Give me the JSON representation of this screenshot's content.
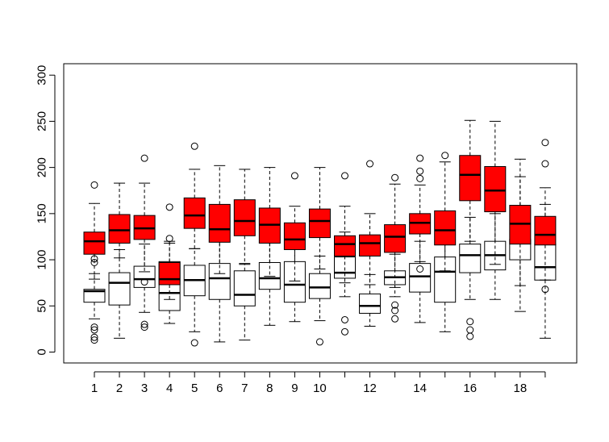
{
  "chart_data": {
    "type": "boxplot",
    "title": "",
    "xlabel": "",
    "ylabel": "",
    "ylim": [
      -12,
      312
    ],
    "yticks": [
      0,
      50,
      100,
      150,
      200,
      250,
      300
    ],
    "ytick_labels": [
      "0",
      "50",
      "100",
      "150",
      "200",
      "250",
      "300"
    ],
    "xtick_labels": [
      "1",
      "2",
      "3",
      "4",
      "5",
      "6",
      "7",
      "8",
      "9",
      "10",
      "12",
      "14",
      "16",
      "18"
    ],
    "xtick_positions": [
      1,
      2,
      3,
      4,
      5,
      6,
      7,
      8,
      9,
      10,
      12,
      14,
      16,
      18
    ],
    "grid": false,
    "legend": "none",
    "series": [
      {
        "fill": "#ffffff",
        "boxes": [
          {
            "x": 1,
            "whisker_low": 36,
            "q1": 54,
            "median": 66,
            "q3": 68,
            "whisker_high": 85,
            "outliers": [
              101,
              97,
              27,
              24,
              16,
              13
            ]
          },
          {
            "x": 2,
            "whisker_low": 15,
            "q1": 51,
            "median": 75,
            "q3": 86,
            "whisker_high": 111,
            "outliers": []
          },
          {
            "x": 3,
            "whisker_low": 43,
            "q1": 70,
            "median": 79,
            "q3": 93,
            "whisker_high": 117,
            "outliers": [
              210,
              76,
              30,
              27
            ]
          },
          {
            "x": 4,
            "whisker_low": 31,
            "q1": 45,
            "median": 64,
            "q3": 98,
            "whisker_high": 120,
            "outliers": [
              123
            ]
          },
          {
            "x": 5,
            "whisker_low": 22,
            "q1": 61,
            "median": 78,
            "q3": 94,
            "whisker_high": 112,
            "outliers": [
              10
            ]
          },
          {
            "x": 6,
            "whisker_low": 11,
            "q1": 57,
            "median": 80,
            "q3": 96,
            "whisker_high": 128,
            "outliers": []
          },
          {
            "x": 7,
            "whisker_low": 13,
            "q1": 50,
            "median": 62,
            "q3": 88,
            "whisker_high": 96,
            "outliers": []
          },
          {
            "x": 8,
            "whisker_low": 29,
            "q1": 68,
            "median": 80,
            "q3": 97,
            "whisker_high": 120,
            "outliers": []
          },
          {
            "x": 9,
            "whisker_low": 33,
            "q1": 54,
            "median": 73,
            "q3": 98,
            "whisker_high": 125,
            "outliers": [
              191
            ]
          },
          {
            "x": 10,
            "whisker_low": 34,
            "q1": 58,
            "median": 70,
            "q3": 85,
            "whisker_high": 104,
            "outliers": [
              11
            ]
          },
          {
            "x": 11,
            "whisker_low": 60,
            "q1": 80,
            "median": 86,
            "q3": 103,
            "whisker_high": 130,
            "outliers": [
              191,
              35,
              22
            ]
          },
          {
            "x": 12,
            "whisker_low": 28,
            "q1": 42,
            "median": 50,
            "q3": 63,
            "whisker_high": 84,
            "outliers": [
              204
            ]
          },
          {
            "x": 13,
            "whisker_low": 60,
            "q1": 73,
            "median": 81,
            "q3": 88,
            "whisker_high": 106,
            "outliers": [
              51,
              45,
              36
            ]
          },
          {
            "x": 14,
            "whisker_low": 32,
            "q1": 65,
            "median": 82,
            "q3": 96,
            "whisker_high": 120,
            "outliers": [
              90
            ]
          },
          {
            "x": 15,
            "whisker_low": 22,
            "q1": 54,
            "median": 87,
            "q3": 103,
            "whisker_high": 146,
            "outliers": []
          },
          {
            "x": 16,
            "whisker_low": 57,
            "q1": 86,
            "median": 105,
            "q3": 117,
            "whisker_high": 146,
            "outliers": [
              33,
              24,
              17
            ]
          },
          {
            "x": 17,
            "whisker_low": 57,
            "q1": 89,
            "median": 105,
            "q3": 120,
            "whisker_high": 150,
            "outliers": []
          },
          {
            "x": 18,
            "whisker_low": 72,
            "q1": 100,
            "median": 118,
            "q3": 122,
            "whisker_high": 190,
            "outliers": []
          },
          {
            "x": 19,
            "whisker_low": 15,
            "q1": 78,
            "median": 92,
            "q3": 117,
            "whisker_high": 160,
            "outliers": [
              68
            ]
          }
        ]
      },
      {
        "fill": "#ff0000",
        "boxes": [
          {
            "x": 1,
            "whisker_low": 79,
            "q1": 106,
            "median": 120,
            "q3": 130,
            "whisker_high": 161,
            "outliers": [
              181
            ]
          },
          {
            "x": 2,
            "whisker_low": 102,
            "q1": 118,
            "median": 132,
            "q3": 149,
            "whisker_high": 183,
            "outliers": []
          },
          {
            "x": 3,
            "whisker_low": 87,
            "q1": 122,
            "median": 134,
            "q3": 148,
            "whisker_high": 183,
            "outliers": []
          },
          {
            "x": 4,
            "whisker_low": 57,
            "q1": 73,
            "median": 79,
            "q3": 97,
            "whisker_high": 118,
            "outliers": [
              157
            ]
          },
          {
            "x": 5,
            "whisker_low": 112,
            "q1": 134,
            "median": 148,
            "q3": 167,
            "whisker_high": 198,
            "outliers": [
              223
            ]
          },
          {
            "x": 6,
            "whisker_low": 85,
            "q1": 119,
            "median": 133,
            "q3": 160,
            "whisker_high": 202,
            "outliers": []
          },
          {
            "x": 7,
            "whisker_low": 95,
            "q1": 126,
            "median": 142,
            "q3": 165,
            "whisker_high": 198,
            "outliers": []
          },
          {
            "x": 8,
            "whisker_low": 82,
            "q1": 118,
            "median": 138,
            "q3": 156,
            "whisker_high": 200,
            "outliers": []
          },
          {
            "x": 9,
            "whisker_low": 77,
            "q1": 111,
            "median": 122,
            "q3": 140,
            "whisker_high": 158,
            "outliers": []
          },
          {
            "x": 10,
            "whisker_low": 90,
            "q1": 124,
            "median": 142,
            "q3": 155,
            "whisker_high": 200,
            "outliers": []
          },
          {
            "x": 11,
            "whisker_low": 75,
            "q1": 104,
            "median": 117,
            "q3": 126,
            "whisker_high": 158,
            "outliers": []
          },
          {
            "x": 12,
            "whisker_low": 73,
            "q1": 104,
            "median": 118,
            "q3": 127,
            "whisker_high": 150,
            "outliers": []
          },
          {
            "x": 13,
            "whisker_low": 70,
            "q1": 108,
            "median": 125,
            "q3": 138,
            "whisker_high": 182,
            "outliers": [
              189
            ]
          },
          {
            "x": 14,
            "whisker_low": 98,
            "q1": 128,
            "median": 140,
            "q3": 150,
            "whisker_high": 181,
            "outliers": [
              210,
              196,
              188
            ]
          },
          {
            "x": 15,
            "whisker_low": 88,
            "q1": 116,
            "median": 132,
            "q3": 153,
            "whisker_high": 206,
            "outliers": [
              213
            ]
          },
          {
            "x": 16,
            "whisker_low": 120,
            "q1": 164,
            "median": 192,
            "q3": 213,
            "whisker_high": 251,
            "outliers": []
          },
          {
            "x": 17,
            "whisker_low": 95,
            "q1": 152,
            "median": 175,
            "q3": 201,
            "whisker_high": 250,
            "outliers": []
          },
          {
            "x": 18,
            "whisker_low": 44,
            "q1": 117,
            "median": 139,
            "q3": 159,
            "whisker_high": 209,
            "outliers": []
          },
          {
            "x": 19,
            "whisker_low": 78,
            "q1": 116,
            "median": 127,
            "q3": 147,
            "whisker_high": 178,
            "outliers": [
              227,
              204
            ]
          }
        ]
      }
    ]
  }
}
